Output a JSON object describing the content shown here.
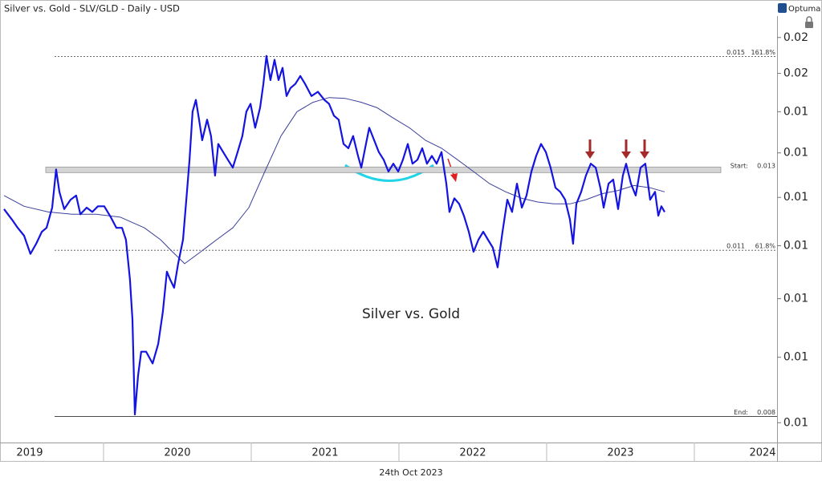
{
  "chart_data": {
    "type": "line",
    "title": "Silver vs. Gold - SLV/GLD - Daily - USD",
    "brand": "Optuma",
    "annotation": "Silver vs. Gold",
    "footer": "24th Oct 2023",
    "log_scale": true,
    "xlim": [
      2019.299,
      2024.56
    ],
    "xticks": [
      2019,
      2020,
      2021,
      2022,
      2023,
      2024
    ],
    "ylim": [
      0.00772,
      0.01663
    ],
    "yticks": [
      {
        "value": 0.016,
        "label": "0.02"
      },
      {
        "value": 0.015,
        "label": "0.02"
      },
      {
        "value": 0.014,
        "label": "0.01"
      },
      {
        "value": 0.013,
        "label": "0.01"
      },
      {
        "value": 0.012,
        "label": "0.01"
      },
      {
        "value": 0.011,
        "label": "0.01"
      },
      {
        "value": 0.01,
        "label": "0.01"
      },
      {
        "value": 0.009,
        "label": "0.01"
      },
      {
        "value": 0.008,
        "label": "0.01"
      }
    ],
    "levels": [
      {
        "label": "161.8%",
        "value": 0.01546,
        "value_label": "0.015",
        "style": "dashed"
      },
      {
        "label": "Start:",
        "value": 0.01261,
        "value_label": "0.013",
        "style": "band"
      },
      {
        "label": "61.8%",
        "value": 0.01091,
        "value_label": "0.011",
        "style": "dashed"
      },
      {
        "label": "End:",
        "value": 0.00809,
        "value_label": "0.008",
        "style": "solid"
      }
    ],
    "series": [
      {
        "color": "#1414e0",
        "width": 2.2,
        "x": [
          2019.326,
          2019.38,
          2019.419,
          2019.462,
          2019.505,
          2019.544,
          2019.582,
          2019.614,
          2019.652,
          2019.679,
          2019.701,
          2019.734,
          2019.777,
          2019.815,
          2019.843,
          2019.886,
          2019.924,
          2019.962,
          2020.005,
          2020.049,
          2020.087,
          2020.125,
          2020.152,
          2020.179,
          2020.196,
          2020.212,
          2020.234,
          2020.255,
          2020.288,
          2020.332,
          2020.37,
          2020.402,
          2020.429,
          2020.451,
          2020.478,
          2020.505,
          2020.538,
          2020.565,
          2020.582,
          2020.603,
          2020.625,
          2020.647,
          2020.668,
          2020.701,
          2020.728,
          2020.755,
          2020.777,
          2020.81,
          2020.842,
          2020.875,
          2020.908,
          2020.94,
          2020.967,
          2020.995,
          2021.027,
          2021.06,
          2021.082,
          2021.103,
          2021.13,
          2021.158,
          2021.185,
          2021.212,
          2021.239,
          2021.266,
          2021.299,
          2021.332,
          2021.364,
          2021.408,
          2021.451,
          2021.495,
          2021.527,
          2021.56,
          2021.592,
          2021.625,
          2021.658,
          2021.69,
          2021.723,
          2021.745,
          2021.777,
          2021.799,
          2021.832,
          2021.864,
          2021.897,
          2021.929,
          2021.962,
          2021.995,
          2022.027,
          2022.06,
          2022.092,
          2022.125,
          2022.158,
          2022.19,
          2022.223,
          2022.255,
          2022.288,
          2022.321,
          2022.342,
          2022.375,
          2022.408,
          2022.44,
          2022.473,
          2022.505,
          2022.538,
          2022.571,
          2022.603,
          2022.636,
          2022.668,
          2022.701,
          2022.734,
          2022.766,
          2022.799,
          2022.832,
          2022.864,
          2022.897,
          2022.929,
          2022.962,
          2022.995,
          2023.027,
          2023.06,
          2023.092,
          2023.125,
          2023.158,
          2023.179,
          2023.201,
          2023.234,
          2023.266,
          2023.299,
          2023.332,
          2023.364,
          2023.386,
          2023.419,
          2023.451,
          2023.484,
          2023.516,
          2023.538,
          2023.571,
          2023.603,
          2023.636,
          2023.668,
          2023.701,
          2023.734,
          2023.756,
          2023.777,
          2023.799
        ],
        "values": [
          0.01175,
          0.01153,
          0.01136,
          0.0112,
          0.01084,
          0.01104,
          0.01128,
          0.01136,
          0.01178,
          0.01262,
          0.01212,
          0.01175,
          0.01195,
          0.01204,
          0.01164,
          0.01178,
          0.01169,
          0.01181,
          0.01181,
          0.01158,
          0.01136,
          0.01136,
          0.01112,
          0.01035,
          0.00963,
          0.00812,
          0.00871,
          0.00909,
          0.00909,
          0.0089,
          0.00922,
          0.00977,
          0.0105,
          0.01035,
          0.0102,
          0.01065,
          0.01112,
          0.01212,
          0.01284,
          0.014,
          0.0143,
          0.0138,
          0.0133,
          0.0138,
          0.0134,
          0.01248,
          0.01321,
          0.01302,
          0.01284,
          0.01266,
          0.01302,
          0.0134,
          0.014,
          0.0142,
          0.0136,
          0.0141,
          0.01472,
          0.01548,
          0.01482,
          0.01537,
          0.01482,
          0.01515,
          0.0144,
          0.01461,
          0.01472,
          0.01493,
          0.01472,
          0.0144,
          0.01451,
          0.0143,
          0.0142,
          0.0139,
          0.0138,
          0.01321,
          0.01311,
          0.0134,
          0.01293,
          0.01266,
          0.01321,
          0.0136,
          0.0133,
          0.01302,
          0.01284,
          0.01257,
          0.01275,
          0.01257,
          0.01284,
          0.01321,
          0.01275,
          0.01284,
          0.01311,
          0.01275,
          0.01293,
          0.01275,
          0.01302,
          0.0123,
          0.01169,
          0.01198,
          0.01186,
          0.01161,
          0.01128,
          0.01088,
          0.01112,
          0.01128,
          0.01112,
          0.01096,
          0.01058,
          0.01128,
          0.01195,
          0.01169,
          0.0123,
          0.01178,
          0.01204,
          0.01257,
          0.01293,
          0.01321,
          0.01302,
          0.01266,
          0.01221,
          0.01212,
          0.01195,
          0.01153,
          0.01104,
          0.01186,
          0.01212,
          0.01248,
          0.01275,
          0.01266,
          0.01221,
          0.01178,
          0.0123,
          0.01239,
          0.01175,
          0.01248,
          0.01275,
          0.0123,
          0.01204,
          0.01266,
          0.01275,
          0.01195,
          0.01212,
          0.01161,
          0.01181,
          0.01169
        ]
      },
      {
        "color": "#3b3f9a",
        "width": 1,
        "x": [
          2019.326,
          2019.462,
          2019.625,
          2019.788,
          2019.951,
          2020.114,
          2020.277,
          2020.386,
          2020.467,
          2020.549,
          2020.658,
          2020.766,
          2020.875,
          2020.984,
          2021.092,
          2021.201,
          2021.31,
          2021.418,
          2021.527,
          2021.636,
          2021.745,
          2021.853,
          2021.962,
          2022.071,
          2022.179,
          2022.288,
          2022.397,
          2022.505,
          2022.614,
          2022.723,
          2022.832,
          2022.94,
          2023.049,
          2023.158,
          2023.266,
          2023.375,
          2023.484,
          2023.592,
          2023.701,
          2023.799
        ],
        "values": [
          0.01204,
          0.01181,
          0.01169,
          0.01164,
          0.01164,
          0.01158,
          0.01136,
          0.01112,
          0.01088,
          0.01065,
          0.01088,
          0.01112,
          0.01136,
          0.01178,
          0.01257,
          0.0134,
          0.014,
          0.01424,
          0.01436,
          0.01434,
          0.01424,
          0.0141,
          0.01384,
          0.0136,
          0.0133,
          0.01311,
          0.01284,
          0.01257,
          0.0123,
          0.01212,
          0.01198,
          0.0119,
          0.01186,
          0.01186,
          0.01195,
          0.01208,
          0.01215,
          0.01226,
          0.01221,
          0.01212
        ]
      }
    ]
  }
}
